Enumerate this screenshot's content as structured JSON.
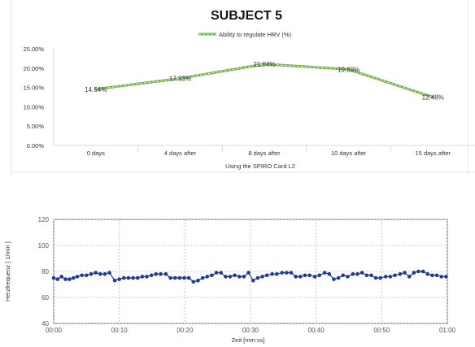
{
  "chart_data": [
    {
      "type": "line",
      "title": "SUBJECT 5",
      "xlabel": "Using the SPIRO Card L2",
      "ylabel": "",
      "categories": [
        "0 days",
        "4 days after",
        "8 days after",
        "10 days after",
        "15 days after"
      ],
      "series": [
        {
          "name": "Ability to regulate HRV (%)",
          "values": [
            14.54,
            17.33,
            21.04,
            19.69,
            12.48
          ],
          "labels": [
            "14.54%",
            "17.33%",
            "21.04%",
            "19.69%",
            "12.48%"
          ]
        }
      ],
      "ylim": [
        0,
        25
      ],
      "yticks": [
        "0.00%",
        "5.00%",
        "10.00%",
        "15.00%",
        "20.00%",
        "25.00%"
      ],
      "grid": true,
      "legend": "top-center",
      "colors": {
        "line": "#6fb043",
        "dash": "#e9eef0",
        "grid": "#d9d9d9"
      }
    },
    {
      "type": "scatter",
      "title": "",
      "xlabel": "Zeit [mm:ss]",
      "ylabel": "Herzfrequenz [ 1/min ]",
      "xticks": [
        "00:00",
        "00:10",
        "00:20",
        "00:30",
        "00:40",
        "00:50",
        "01:00"
      ],
      "xlim_seconds": [
        0,
        60
      ],
      "ylim": [
        40,
        120
      ],
      "yticks": [
        40,
        60,
        80,
        100,
        120
      ],
      "grid": true,
      "colors": {
        "line": "#1f3f9a",
        "marker": "#1e3c96",
        "grid": "#bcbcbc"
      },
      "series": [
        {
          "name": "",
          "points": [
            [
              0.0,
              75
            ],
            [
              0.6,
              74
            ],
            [
              1.2,
              76
            ],
            [
              1.8,
              74
            ],
            [
              2.4,
              74
            ],
            [
              3.0,
              75
            ],
            [
              3.6,
              76
            ],
            [
              4.3,
              77
            ],
            [
              5.0,
              77
            ],
            [
              5.7,
              78
            ],
            [
              6.4,
              79
            ],
            [
              7.1,
              78
            ],
            [
              7.8,
              78
            ],
            [
              8.5,
              79
            ],
            [
              9.3,
              73
            ],
            [
              10.0,
              74
            ],
            [
              10.7,
              75
            ],
            [
              11.4,
              75
            ],
            [
              12.1,
              75
            ],
            [
              12.8,
              75
            ],
            [
              13.5,
              76
            ],
            [
              14.2,
              76
            ],
            [
              14.9,
              77
            ],
            [
              15.6,
              78
            ],
            [
              16.3,
              78
            ],
            [
              17.1,
              78
            ],
            [
              17.8,
              75
            ],
            [
              18.5,
              75
            ],
            [
              19.2,
              75
            ],
            [
              19.9,
              75
            ],
            [
              20.6,
              75
            ],
            [
              21.3,
              72
            ],
            [
              22.0,
              73
            ],
            [
              22.7,
              75
            ],
            [
              23.4,
              76
            ],
            [
              24.1,
              77
            ],
            [
              24.8,
              79
            ],
            [
              25.5,
              79
            ],
            [
              26.2,
              76
            ],
            [
              26.9,
              76
            ],
            [
              27.6,
              77
            ],
            [
              28.3,
              76
            ],
            [
              29.0,
              76
            ],
            [
              29.7,
              79
            ],
            [
              30.4,
              73
            ],
            [
              31.1,
              75
            ],
            [
              31.8,
              76
            ],
            [
              32.5,
              77
            ],
            [
              33.3,
              78
            ],
            [
              34.0,
              78
            ],
            [
              34.8,
              79
            ],
            [
              35.5,
              79
            ],
            [
              36.2,
              79
            ],
            [
              36.9,
              76
            ],
            [
              37.6,
              76
            ],
            [
              38.3,
              77
            ],
            [
              39.0,
              77
            ],
            [
              39.8,
              76
            ],
            [
              40.5,
              77
            ],
            [
              41.3,
              79
            ],
            [
              42.0,
              78
            ],
            [
              42.7,
              74
            ],
            [
              43.4,
              75
            ],
            [
              44.1,
              77
            ],
            [
              44.8,
              76
            ],
            [
              45.6,
              78
            ],
            [
              46.3,
              78
            ],
            [
              47.0,
              79
            ],
            [
              47.7,
              77
            ],
            [
              48.4,
              77
            ],
            [
              49.1,
              75
            ],
            [
              49.8,
              75
            ],
            [
              50.6,
              76
            ],
            [
              51.3,
              76
            ],
            [
              52.0,
              77
            ],
            [
              52.8,
              78
            ],
            [
              53.5,
              79
            ],
            [
              54.2,
              76
            ],
            [
              54.9,
              79
            ],
            [
              55.6,
              80
            ],
            [
              56.3,
              80
            ],
            [
              57.0,
              78
            ],
            [
              57.7,
              77
            ],
            [
              58.4,
              77
            ],
            [
              59.1,
              76
            ],
            [
              59.8,
              76
            ]
          ]
        }
      ]
    }
  ]
}
